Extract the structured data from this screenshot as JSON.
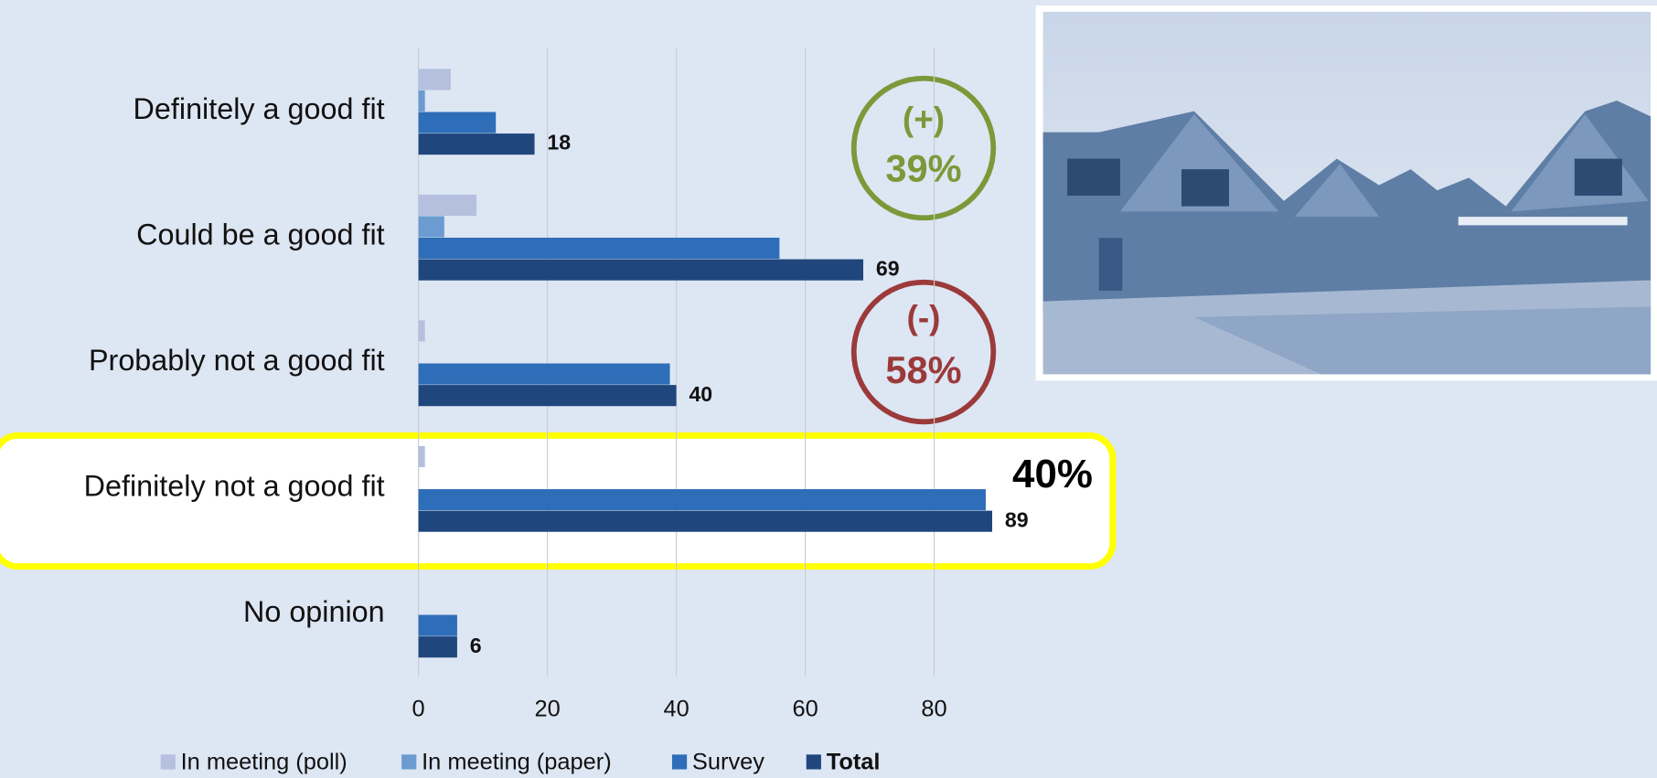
{
  "chart_data": {
    "type": "hbar",
    "categories": [
      "Definitely a good fit",
      "Could be a good fit",
      "Probably not a good fit",
      "Definitely not a good fit",
      "No opinion"
    ],
    "series": [
      {
        "name": "In meeting (poll)",
        "color": "#b4c0de",
        "values": [
          5,
          9,
          1,
          1,
          0
        ]
      },
      {
        "name": "In meeting (paper)",
        "color": "#6b9bd1",
        "values": [
          1,
          4,
          0,
          0,
          0
        ]
      },
      {
        "name": "Survey",
        "color": "#2e6db8",
        "values": [
          12,
          56,
          39,
          88,
          6
        ]
      },
      {
        "name": "Total",
        "color": "#20467e",
        "values": [
          18,
          69,
          40,
          89,
          6
        ],
        "data_labels": true
      }
    ],
    "xlim": [
      0,
      90
    ],
    "xticks": [
      0,
      20,
      40,
      60,
      80
    ],
    "grid": true,
    "annotations": [
      "(+)",
      "39%",
      "(-)",
      "58%",
      "40%"
    ]
  }
}
